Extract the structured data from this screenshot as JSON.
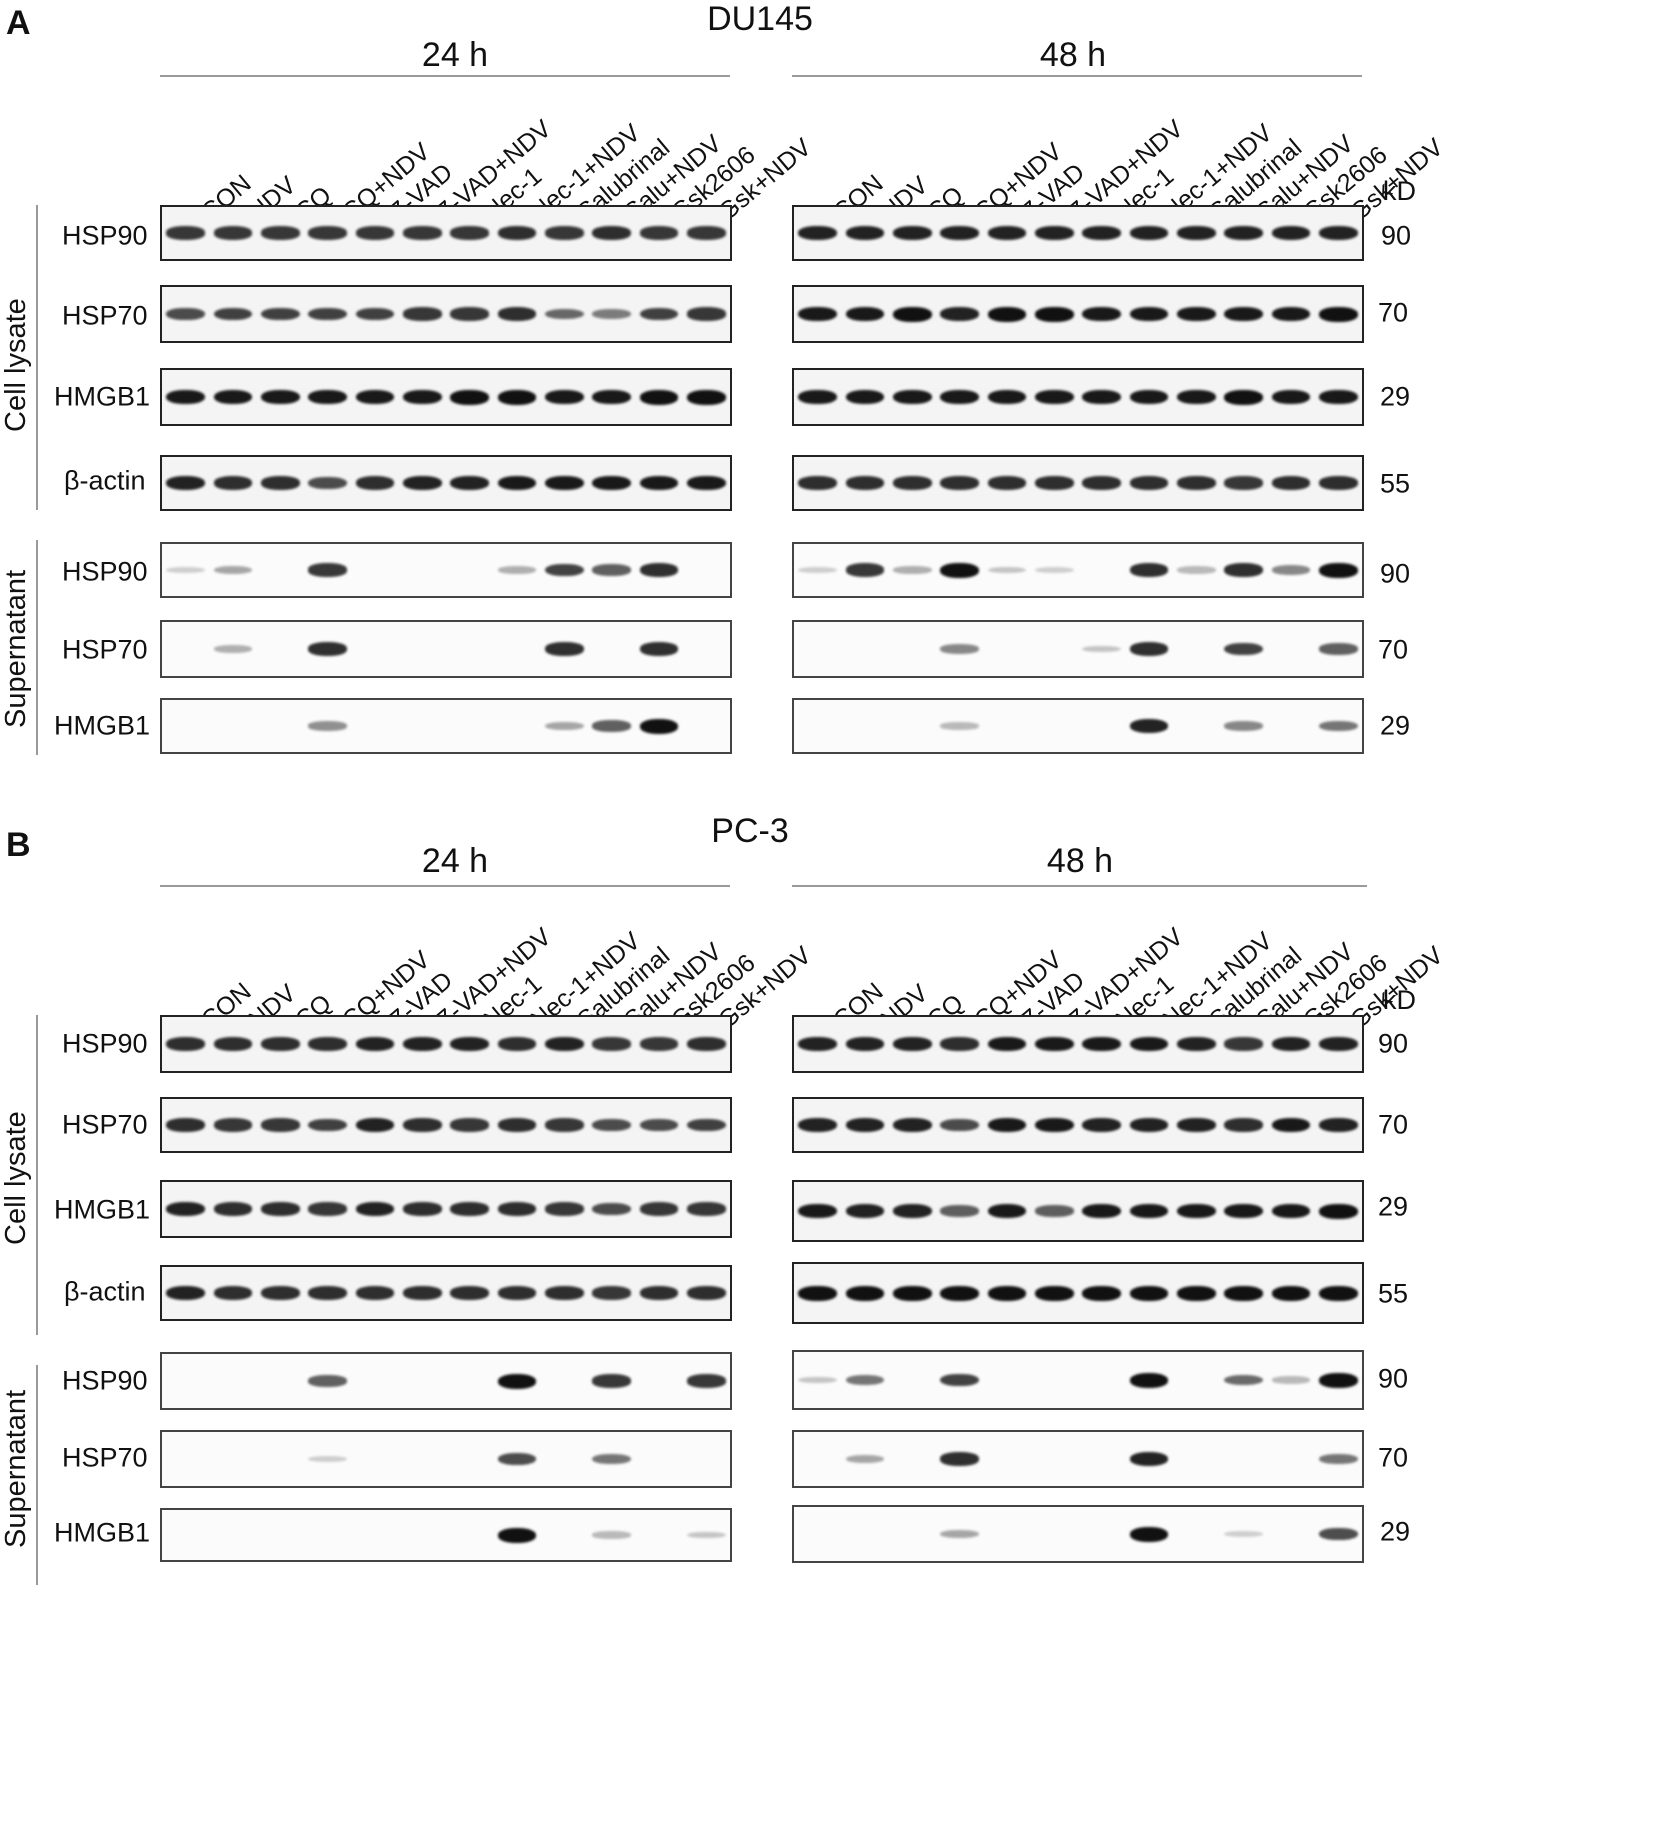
{
  "panels": [
    {
      "letter": "A",
      "cell_line": "DU145",
      "times": [
        "24 h",
        "48 h"
      ],
      "lanes": [
        "CON",
        "NDV",
        "CQ",
        "CQ+NDV",
        "Z-VAD",
        "Z-VAD+NDV",
        "Nec-1",
        "Nec-1+NDV",
        "Salubrinal",
        "Salu+NDV",
        "Gsk2606",
        "Gsk+NDV"
      ],
      "kd_header": "kD",
      "groups": [
        "Cell lysate",
        "Supernatant"
      ],
      "rows": [
        {
          "label": "HSP90",
          "kd": "90"
        },
        {
          "label": "HSP70",
          "kd": "70"
        },
        {
          "label": "HMGB1",
          "kd": "29"
        },
        {
          "label": "β-actin",
          "kd": "55"
        },
        {
          "label": "HSP90",
          "kd": "90"
        },
        {
          "label": "HSP70",
          "kd": "70"
        },
        {
          "label": "HMGB1",
          "kd": "29"
        }
      ]
    },
    {
      "letter": "B",
      "cell_line": "PC-3",
      "times": [
        "24 h",
        "48 h"
      ],
      "lanes": [
        "CON",
        "NDV",
        "CQ",
        "CQ+NDV",
        "Z-VAD",
        "Z-VAD+NDV",
        "Nec-1",
        "Nec-1+NDV",
        "Salubrinal",
        "Salu+NDV",
        "Gsk2606",
        "Gsk+NDV"
      ],
      "kd_header": "kD",
      "groups": [
        "Cell lysate",
        "Supernatant"
      ],
      "rows": [
        {
          "label": "HSP90",
          "kd": "90"
        },
        {
          "label": "HSP70",
          "kd": "70"
        },
        {
          "label": "HMGB1",
          "kd": "29"
        },
        {
          "label": "β-actin",
          "kd": "55"
        },
        {
          "label": "HSP90",
          "kd": "90"
        },
        {
          "label": "HSP70",
          "kd": "70"
        },
        {
          "label": "HMGB1",
          "kd": "29"
        }
      ]
    }
  ],
  "band_intensity": {
    "A": [
      [
        [
          0.8,
          0.8,
          0.8,
          0.8,
          0.8,
          0.8,
          0.8,
          0.85,
          0.8,
          0.85,
          0.8,
          0.8
        ],
        [
          0.9,
          0.9,
          0.9,
          0.9,
          0.9,
          0.9,
          0.9,
          0.9,
          0.9,
          0.9,
          0.9,
          0.9
        ]
      ],
      [
        [
          0.7,
          0.75,
          0.75,
          0.75,
          0.75,
          0.8,
          0.8,
          0.85,
          0.55,
          0.45,
          0.75,
          0.8
        ],
        [
          0.95,
          0.95,
          1,
          0.9,
          1,
          1,
          0.95,
          0.95,
          0.95,
          0.95,
          0.95,
          1
        ]
      ],
      [
        [
          0.95,
          0.95,
          0.95,
          0.95,
          0.95,
          0.95,
          1,
          1,
          0.95,
          0.95,
          1,
          1
        ],
        [
          0.95,
          0.95,
          0.95,
          0.95,
          0.95,
          0.95,
          0.95,
          0.95,
          0.95,
          1,
          0.95,
          0.95
        ]
      ],
      [
        [
          0.9,
          0.85,
          0.85,
          0.7,
          0.85,
          0.9,
          0.9,
          0.95,
          0.95,
          0.95,
          0.95,
          0.95
        ],
        [
          0.85,
          0.85,
          0.85,
          0.85,
          0.85,
          0.85,
          0.85,
          0.85,
          0.85,
          0.8,
          0.85,
          0.85
        ]
      ],
      [
        [
          0.05,
          0.25,
          0,
          0.8,
          0,
          0,
          0,
          0.2,
          0.75,
          0.6,
          0.85,
          0
        ],
        [
          0.05,
          0.8,
          0.2,
          1,
          0.1,
          0.05,
          0,
          0.85,
          0.15,
          0.85,
          0.4,
          1
        ]
      ],
      [
        [
          0,
          0.2,
          0,
          0.85,
          0,
          0,
          0,
          0,
          0.85,
          0,
          0.85,
          0
        ],
        [
          0,
          0,
          0,
          0.4,
          0,
          0,
          0.1,
          0.85,
          0,
          0.75,
          0,
          0.6
        ]
      ],
      [
        [
          0,
          0,
          0,
          0.35,
          0,
          0,
          0,
          0,
          0.25,
          0.6,
          1,
          0
        ],
        [
          0,
          0,
          0,
          0.15,
          0,
          0,
          0,
          0.9,
          0,
          0.4,
          0,
          0.5
        ]
      ]
    ],
    "B": [
      [
        [
          0.85,
          0.85,
          0.85,
          0.85,
          0.9,
          0.9,
          0.9,
          0.85,
          0.9,
          0.8,
          0.8,
          0.85
        ],
        [
          0.9,
          0.9,
          0.9,
          0.85,
          0.95,
          0.95,
          0.95,
          0.95,
          0.9,
          0.8,
          0.9,
          0.9
        ]
      ],
      [
        [
          0.85,
          0.8,
          0.8,
          0.75,
          0.9,
          0.85,
          0.8,
          0.85,
          0.8,
          0.7,
          0.7,
          0.75
        ],
        [
          0.9,
          0.9,
          0.9,
          0.7,
          0.95,
          0.95,
          0.9,
          0.9,
          0.9,
          0.85,
          0.95,
          0.9
        ]
      ],
      [
        [
          0.9,
          0.85,
          0.85,
          0.8,
          0.9,
          0.85,
          0.85,
          0.85,
          0.8,
          0.7,
          0.8,
          0.8
        ],
        [
          0.95,
          0.9,
          0.9,
          0.6,
          0.95,
          0.6,
          0.95,
          0.95,
          0.95,
          0.95,
          0.95,
          1
        ]
      ],
      [
        [
          0.9,
          0.85,
          0.85,
          0.85,
          0.85,
          0.85,
          0.85,
          0.85,
          0.85,
          0.8,
          0.85,
          0.85
        ],
        [
          1,
          1,
          1,
          1,
          1,
          1,
          1,
          1,
          1,
          1,
          1,
          1
        ]
      ],
      [
        [
          0,
          0,
          0,
          0.6,
          0,
          0,
          0,
          1,
          0,
          0.8,
          0,
          0.8
        ],
        [
          0.1,
          0.5,
          0,
          0.75,
          0,
          0,
          0,
          1,
          0,
          0.55,
          0.15,
          1
        ]
      ],
      [
        [
          0,
          0,
          0,
          0.05,
          0,
          0,
          0,
          0.7,
          0,
          0.5,
          0,
          0
        ],
        [
          0,
          0.25,
          0,
          0.85,
          0,
          0,
          0,
          0.9,
          0,
          0,
          0,
          0.5
        ]
      ],
      [
        [
          0,
          0,
          0,
          0,
          0,
          0,
          0,
          1,
          0,
          0.15,
          0,
          0.1
        ],
        [
          0,
          0,
          0,
          0.25,
          0,
          0,
          0,
          1,
          0,
          0.05,
          0,
          0.7
        ]
      ]
    ]
  }
}
